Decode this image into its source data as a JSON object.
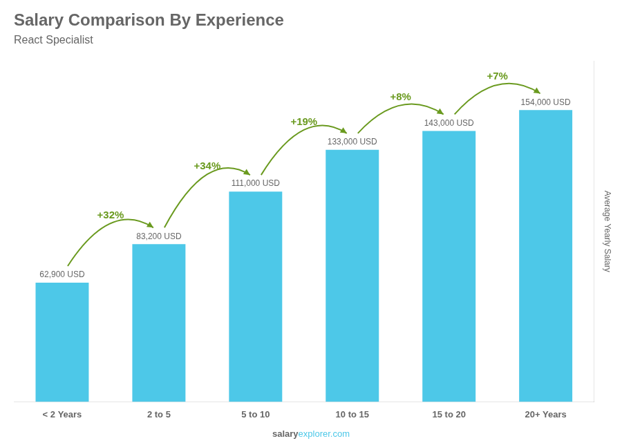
{
  "chart_data": {
    "type": "bar",
    "title": "Salary Comparison By Experience",
    "subtitle": "React Specialist",
    "ylabel": "Average Yearly Salary",
    "footer": [
      "salary",
      "explorer.com"
    ],
    "categories": [
      "< 2 Years",
      "2 to 5",
      "5 to 10",
      "10 to 15",
      "15 to 20",
      "20+ Years"
    ],
    "values": [
      62900,
      83200,
      111000,
      133000,
      143000,
      154000
    ],
    "value_labels": [
      "62,900 USD",
      "83,200 USD",
      "111,000 USD",
      "133,000 USD",
      "143,000 USD",
      "154,000 USD"
    ],
    "data_labels": true,
    "annotations": [
      "+32%",
      "+34%",
      "+19%",
      "+8%",
      "+7%"
    ],
    "color": "#4dc8e8",
    "ylim": [
      0,
      180000
    ],
    "grid": false,
    "tick_labels": "x"
  }
}
